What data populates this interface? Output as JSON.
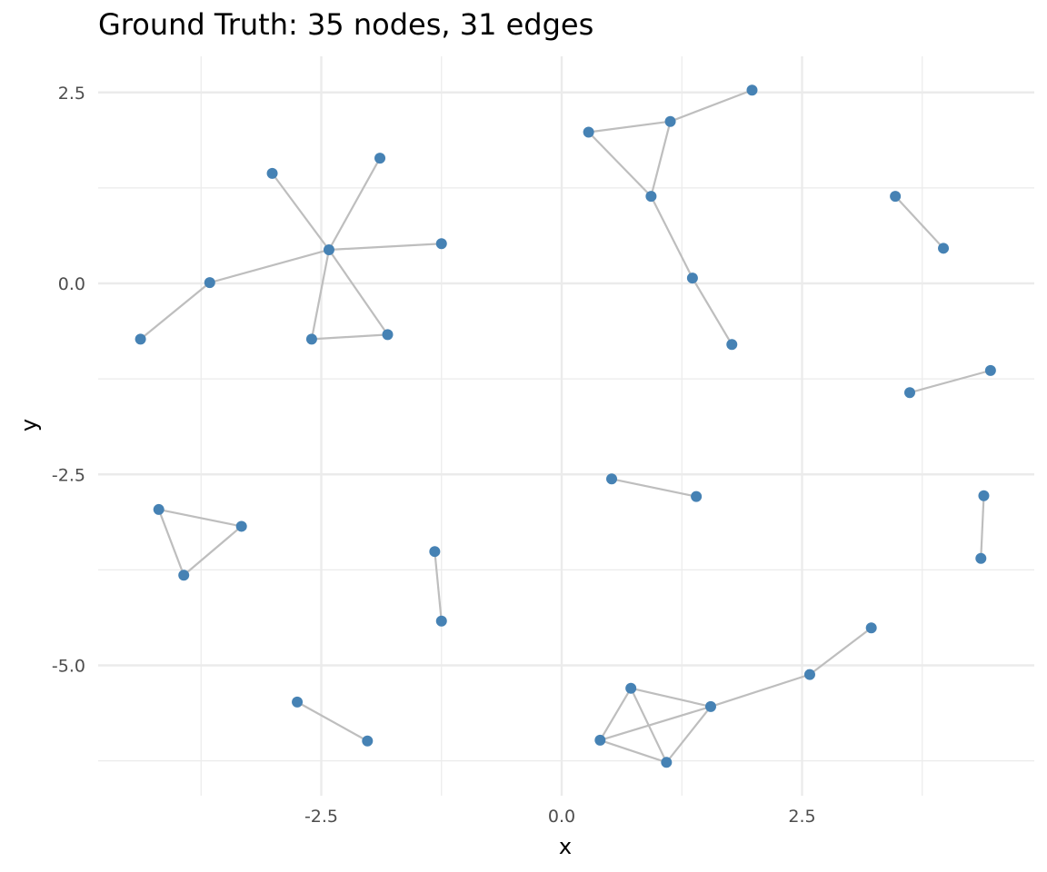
{
  "title": "Ground Truth: 35 nodes, 31 edges",
  "chart_data": {
    "type": "scatter",
    "subtype": "network-graph",
    "title": "Ground Truth: 35 nodes, 31 edges",
    "xlabel": "x",
    "ylabel": "y",
    "xlim": [
      -4.5,
      4.95
    ],
    "ylim": [
      -6.65,
      2.95
    ],
    "x_ticks": [
      -2.5,
      0.0,
      2.5
    ],
    "x_tick_labels": [
      "-2.5",
      "0.0",
      "2.5"
    ],
    "y_ticks": [
      2.5,
      0.0,
      -2.5,
      -5.0
    ],
    "y_tick_labels": [
      "2.5",
      "0.0",
      "-2.5",
      "-5.0"
    ],
    "grid": true,
    "legend": "none",
    "node_color": "#4682B4",
    "edge_color": "#BEBEBE",
    "node_count": 35,
    "edge_count": 31,
    "nodes": [
      {
        "id": 0,
        "x": -4.38,
        "y": -0.73
      },
      {
        "id": 1,
        "x": -3.66,
        "y": 0.01
      },
      {
        "id": 2,
        "x": -3.01,
        "y": 1.44
      },
      {
        "id": 3,
        "x": -1.89,
        "y": 1.64
      },
      {
        "id": 4,
        "x": -2.42,
        "y": 0.44
      },
      {
        "id": 5,
        "x": -1.25,
        "y": 0.52
      },
      {
        "id": 6,
        "x": -2.6,
        "y": -0.73
      },
      {
        "id": 7,
        "x": -1.81,
        "y": -0.67
      },
      {
        "id": 8,
        "x": 1.98,
        "y": 2.53
      },
      {
        "id": 9,
        "x": 1.13,
        "y": 2.12
      },
      {
        "id": 10,
        "x": 0.28,
        "y": 1.98
      },
      {
        "id": 11,
        "x": 0.93,
        "y": 1.14
      },
      {
        "id": 12,
        "x": 1.36,
        "y": 0.07
      },
      {
        "id": 13,
        "x": 1.77,
        "y": -0.8
      },
      {
        "id": 14,
        "x": 3.47,
        "y": 1.14
      },
      {
        "id": 15,
        "x": 3.97,
        "y": 0.46
      },
      {
        "id": 16,
        "x": 3.62,
        "y": -1.43
      },
      {
        "id": 17,
        "x": 4.46,
        "y": -1.14
      },
      {
        "id": 18,
        "x": -4.19,
        "y": -2.96
      },
      {
        "id": 19,
        "x": -3.33,
        "y": -3.18
      },
      {
        "id": 20,
        "x": -3.93,
        "y": -3.82
      },
      {
        "id": 21,
        "x": -1.32,
        "y": -3.51
      },
      {
        "id": 22,
        "x": -1.25,
        "y": -4.42
      },
      {
        "id": 23,
        "x": -2.75,
        "y": -5.48
      },
      {
        "id": 24,
        "x": -2.02,
        "y": -5.99
      },
      {
        "id": 25,
        "x": 0.52,
        "y": -2.56
      },
      {
        "id": 26,
        "x": 1.4,
        "y": -2.79
      },
      {
        "id": 27,
        "x": 4.39,
        "y": -2.78
      },
      {
        "id": 28,
        "x": 4.36,
        "y": -3.6
      },
      {
        "id": 29,
        "x": 3.22,
        "y": -4.51
      },
      {
        "id": 30,
        "x": 2.58,
        "y": -5.12
      },
      {
        "id": 31,
        "x": 1.55,
        "y": -5.54
      },
      {
        "id": 32,
        "x": 0.72,
        "y": -5.3
      },
      {
        "id": 33,
        "x": 0.4,
        "y": -5.98
      },
      {
        "id": 34,
        "x": 1.09,
        "y": -6.27
      }
    ],
    "edges": [
      [
        0,
        1
      ],
      [
        1,
        4
      ],
      [
        2,
        4
      ],
      [
        3,
        4
      ],
      [
        5,
        4
      ],
      [
        6,
        4
      ],
      [
        7,
        4
      ],
      [
        6,
        7
      ],
      [
        10,
        9
      ],
      [
        9,
        8
      ],
      [
        10,
        11
      ],
      [
        9,
        11
      ],
      [
        11,
        12
      ],
      [
        12,
        13
      ],
      [
        14,
        15
      ],
      [
        16,
        17
      ],
      [
        18,
        19
      ],
      [
        18,
        20
      ],
      [
        20,
        19
      ],
      [
        21,
        22
      ],
      [
        23,
        24
      ],
      [
        25,
        26
      ],
      [
        27,
        28
      ],
      [
        32,
        31
      ],
      [
        32,
        34
      ],
      [
        33,
        32
      ],
      [
        33,
        31
      ],
      [
        33,
        34
      ],
      [
        34,
        31
      ],
      [
        31,
        30
      ],
      [
        30,
        29
      ]
    ]
  }
}
